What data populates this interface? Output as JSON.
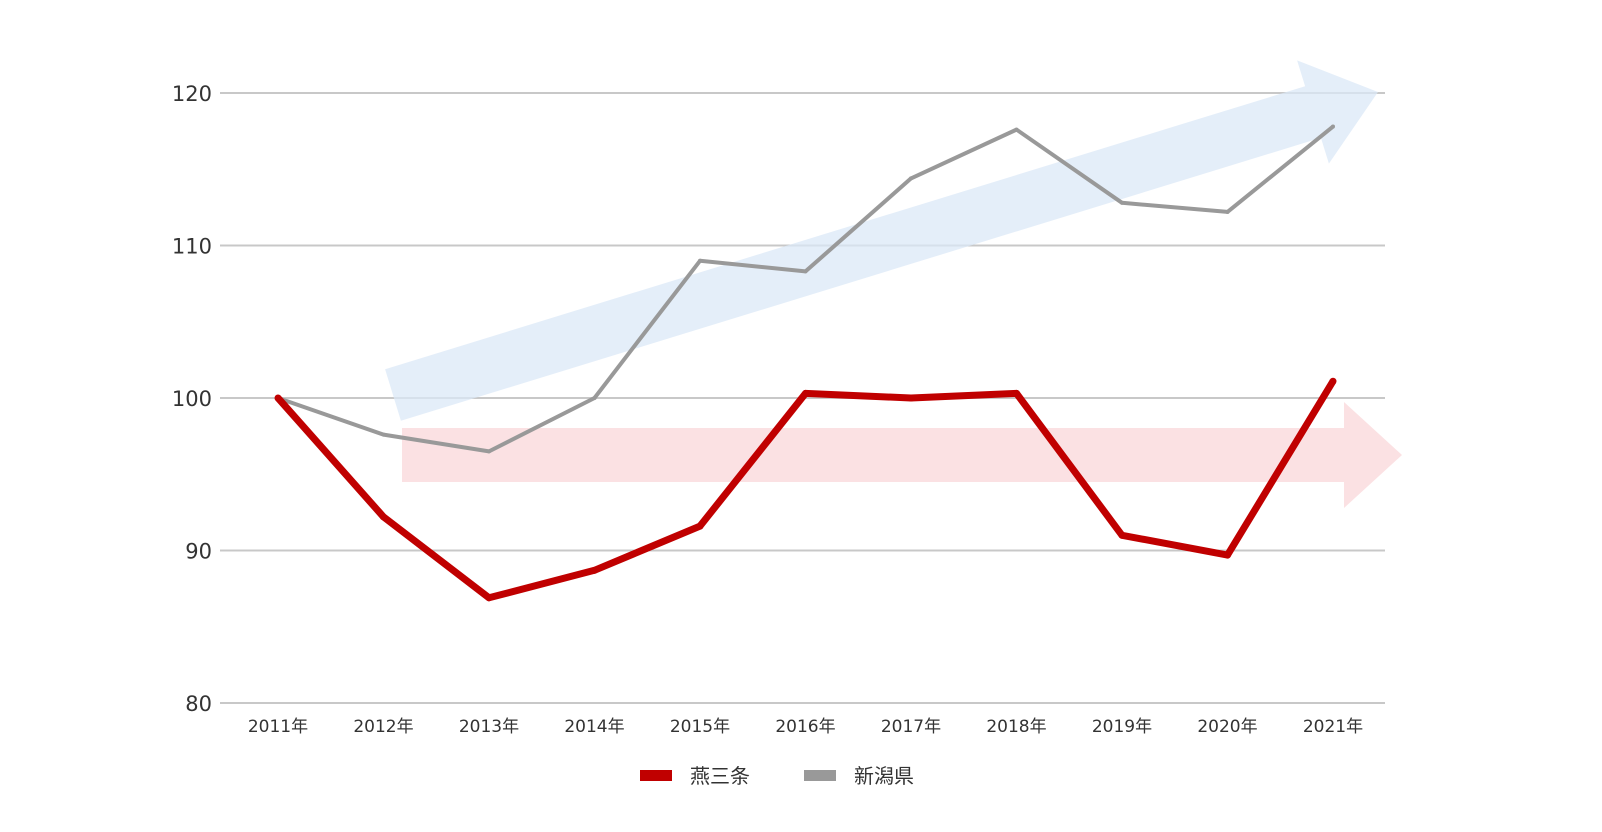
{
  "chart_data": {
    "type": "line",
    "categories": [
      "2011年",
      "2012年",
      "2013年",
      "2014年",
      "2015年",
      "2016年",
      "2017年",
      "2018年",
      "2019年",
      "2020年",
      "2021年"
    ],
    "series": [
      {
        "name": "燕三条",
        "color": "#c00000",
        "values": [
          100.0,
          92.2,
          86.9,
          88.7,
          91.6,
          100.3,
          100.0,
          100.3,
          91.0,
          89.7,
          101.1
        ]
      },
      {
        "name": "新潟県",
        "color": "#999999",
        "values": [
          100.0,
          97.6,
          96.5,
          100.0,
          109.0,
          108.3,
          114.4,
          117.6,
          112.8,
          112.2,
          117.8
        ]
      }
    ],
    "y_ticks": [
      "80",
      "90",
      "100",
      "110",
      "120"
    ],
    "ylim": [
      80,
      120
    ],
    "grid": true,
    "legend_position": "bottom-center",
    "trend_arrows": [
      {
        "series": "新潟県",
        "direction": "up",
        "color": "#dbe8f7"
      },
      {
        "series": "燕三条",
        "direction": "flat",
        "color": "#f9d7d9"
      }
    ]
  }
}
